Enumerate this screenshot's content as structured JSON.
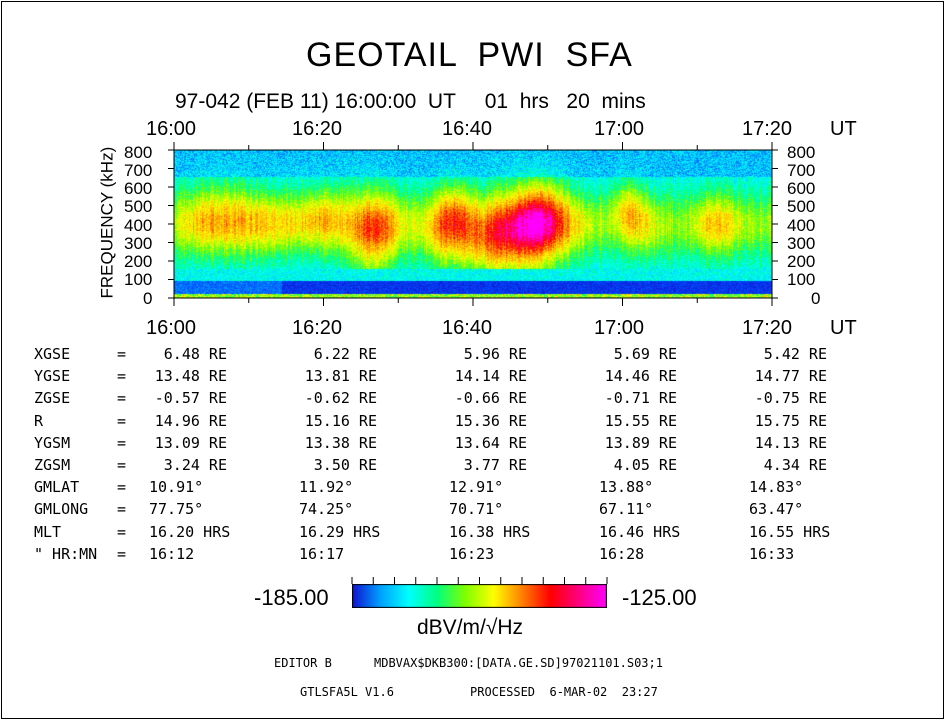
{
  "title": "GEOTAIL  PWI  SFA",
  "subtitle": "97-042 (FEB 11) 16:00:00  UT     01  hrs   20  mins",
  "chart_data": {
    "type": "heatmap",
    "ylabel": "FREQUENCY (kHz)",
    "ylim": [
      0,
      800
    ],
    "yticks": [
      "800",
      "700",
      "600",
      "500",
      "400",
      "300",
      "200",
      "100",
      "0"
    ],
    "xticks": [
      "16:00",
      "16:20",
      "16:40",
      "17:00",
      "17:20"
    ],
    "xunit": "UT",
    "colorbar": {
      "min": "-185.00",
      "max": "-125.00",
      "unit": "dBV/m/√Hz",
      "colors": [
        "#1010d0",
        "#00a0ff",
        "#00ffff",
        "#00ff80",
        "#80ff00",
        "#ffff00",
        "#ff8000",
        "#ff0000",
        "#ff0080",
        "#ff00ff"
      ]
    }
  },
  "ephemeris": {
    "rows": [
      {
        "label": "XGSE",
        "eq": "=",
        "values": [
          "6.48 RE",
          "6.22 RE",
          "5.96 RE",
          "5.69 RE",
          "5.42 RE"
        ]
      },
      {
        "label": "YGSE",
        "eq": "=",
        "values": [
          "13.48 RE",
          "13.81 RE",
          "14.14 RE",
          "14.46 RE",
          "14.77 RE"
        ]
      },
      {
        "label": "ZGSE",
        "eq": "=",
        "values": [
          "-0.57 RE",
          "-0.62 RE",
          "-0.66 RE",
          "-0.71 RE",
          "-0.75 RE"
        ]
      },
      {
        "label": "R",
        "eq": "=",
        "values": [
          "14.96 RE",
          "15.16 RE",
          "15.36 RE",
          "15.55 RE",
          "15.75 RE"
        ]
      },
      {
        "label": "YGSM",
        "eq": "=",
        "values": [
          "13.09 RE",
          "13.38 RE",
          "13.64 RE",
          "13.89 RE",
          "14.13 RE"
        ]
      },
      {
        "label": "ZGSM",
        "eq": "=",
        "values": [
          "3.24 RE",
          "3.50 RE",
          "3.77 RE",
          "4.05 RE",
          "4.34 RE"
        ]
      },
      {
        "label": "GMLAT",
        "eq": "=",
        "values": [
          "10.91°",
          "11.92°",
          "12.91°",
          "13.88°",
          "14.83°"
        ]
      },
      {
        "label": "GMLONG",
        "eq": "=",
        "values": [
          "77.75°",
          "74.25°",
          "70.71°",
          "67.11°",
          "63.47°"
        ]
      },
      {
        "label": "MLT",
        "eq": "=",
        "values": [
          "16.20 HRS",
          "16.29 HRS",
          "16.38 HRS",
          "16.46 HRS",
          "16.55 HRS"
        ]
      },
      {
        "label": "\" HR:MN",
        "eq": "=",
        "values": [
          "16:12",
          "16:17",
          "16:23",
          "16:28",
          "16:33"
        ]
      }
    ]
  },
  "footer": {
    "editor": "EDITOR B",
    "path": "MDBVAX$DKB300:[DATA.GE.SD]97021101.S03;1",
    "program": "GTLSFA5L V1.6",
    "processed": "PROCESSED  6-MAR-02  23:27"
  }
}
